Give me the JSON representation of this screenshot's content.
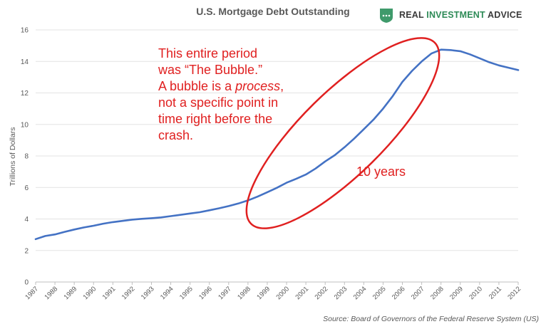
{
  "logo": {
    "brand_part1": "REAL ",
    "brand_part2": "INVESTMENT",
    "brand_part3": " ADVICE",
    "accent_color": "#2e8b57",
    "icon": "chart-badge-icon"
  },
  "chart_data": {
    "type": "line",
    "title": "U.S. Mortgage Debt Outstanding",
    "ylabel": "Trillions of Dollars",
    "xlabel": "",
    "ylim": [
      0,
      16
    ],
    "yticks": [
      0,
      2,
      4,
      6,
      8,
      10,
      12,
      14,
      16
    ],
    "xlim": [
      1987,
      2012
    ],
    "xticks": [
      "1987",
      "1988",
      "1989",
      "1990",
      "1991",
      "1992",
      "1993",
      "1994",
      "1995",
      "1996",
      "1997",
      "1998",
      "1999",
      "2000",
      "2001",
      "2002",
      "2003",
      "2004",
      "2005",
      "2006",
      "2007",
      "2008",
      "2009",
      "2010",
      "2011",
      "2012"
    ],
    "grid": "horizontal",
    "line_color": "#4472c4",
    "series": [
      {
        "x": [
          1987,
          1987.5,
          1988,
          1988.5,
          1989,
          1989.5,
          1990,
          1990.5,
          1991,
          1991.5,
          1992,
          1992.5,
          1993,
          1993.5,
          1994,
          1994.5,
          1995,
          1995.5,
          1996,
          1996.5,
          1997,
          1997.5,
          1998,
          1998.5,
          1999,
          1999.5,
          2000,
          2000.5,
          2001,
          2001.5,
          2002,
          2002.5,
          2003,
          2003.5,
          2004,
          2004.5,
          2005,
          2005.5,
          2006,
          2006.5,
          2007,
          2007.5,
          2008,
          2008.5,
          2009,
          2009.5,
          2010,
          2010.5,
          2011,
          2011.5,
          2012
        ],
        "y": [
          2.72,
          2.92,
          3.02,
          3.18,
          3.33,
          3.46,
          3.57,
          3.7,
          3.8,
          3.88,
          3.96,
          4.01,
          4.05,
          4.1,
          4.18,
          4.26,
          4.35,
          4.43,
          4.55,
          4.68,
          4.82,
          4.98,
          5.18,
          5.42,
          5.7,
          5.98,
          6.3,
          6.55,
          6.82,
          7.2,
          7.65,
          8.05,
          8.55,
          9.1,
          9.7,
          10.3,
          11.0,
          11.8,
          12.7,
          13.4,
          14.0,
          14.5,
          14.75,
          14.72,
          14.65,
          14.45,
          14.2,
          13.95,
          13.75,
          13.6,
          13.45
        ]
      }
    ],
    "annotation_lines": [
      "This entire period",
      "was “The Bubble.”",
      "A bubble is a ",
      "process",
      ",",
      "not a specific point in",
      "time right before the",
      "crash."
    ],
    "annotation_years": "10 years",
    "annotation_color": "#e02020",
    "source": "Source: Board of Governors of the Federal Reserve System (US)"
  }
}
